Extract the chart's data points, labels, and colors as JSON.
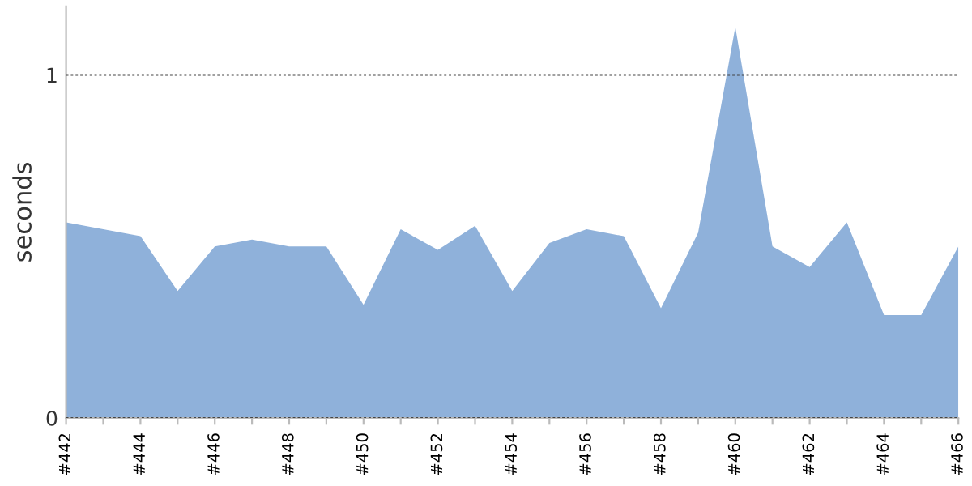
{
  "chart_data": {
    "type": "area",
    "ylabel": "seconds",
    "categories": [
      "#442",
      null,
      "#444",
      null,
      "#446",
      null,
      "#448",
      null,
      "#450",
      null,
      "#452",
      null,
      "#454",
      null,
      "#456",
      null,
      "#458",
      null,
      "#460",
      null,
      "#462",
      null,
      "#464",
      null,
      "#466"
    ],
    "series": [
      {
        "color": "#8fb1da",
        "values": [
          0.57,
          0.55,
          0.53,
          0.37,
          0.5,
          0.52,
          0.5,
          0.5,
          0.33,
          0.55,
          0.49,
          0.56,
          0.37,
          0.51,
          0.55,
          0.53,
          0.32,
          0.54,
          1.14,
          0.5,
          0.44,
          0.57,
          0.3,
          0.3,
          0.5
        ]
      }
    ],
    "ylim": [
      0,
      1.2
    ],
    "yticks": [
      0,
      1
    ],
    "grid": "y",
    "legend": false
  }
}
